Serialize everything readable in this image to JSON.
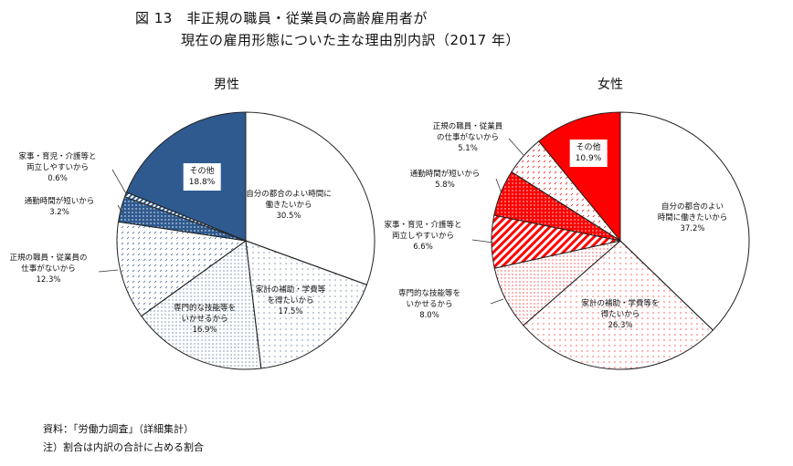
{
  "title_line1": "図 13　非正規の職員・従業員の高齢雇用者が",
  "title_line2": "現在の雇用形態についた主な理由別内訳（2017 年）",
  "notes": [
    "資料：「労働力調査」（詳細集計）",
    "注）割合は内訳の合計に占める割合"
  ],
  "colors": {
    "male": "#2f5a8f",
    "female": "#ff0000"
  },
  "chart_data": [
    {
      "type": "pie",
      "title": "男性",
      "direction": "clockwise from top",
      "slices": [
        {
          "label": [
            "自分の都合のよい時間に",
            "働きたいから"
          ],
          "value": 30.5,
          "value_label": "30.5%",
          "pattern": "none"
        },
        {
          "label": [
            "家計の補助・学費等",
            "を得たいから"
          ],
          "value": 17.5,
          "value_label": "17.5%",
          "pattern": "sparse-dots"
        },
        {
          "label": [
            "専門的な技能等を",
            "いかせるから"
          ],
          "value": 16.9,
          "value_label": "16.9%",
          "pattern": "dots"
        },
        {
          "label": [
            "正規の職員・従業員の",
            "仕事がないから"
          ],
          "value": 12.3,
          "value_label": "12.3%",
          "pattern": "dashes"
        },
        {
          "label": [
            "通勤時間が短いから"
          ],
          "value": 3.2,
          "value_label": "3.2%",
          "pattern": "dense-dots-on-color"
        },
        {
          "label": [
            "家事・育児・介護等と",
            "両立しやすいから"
          ],
          "value": 0.6,
          "value_label": "0.6%",
          "pattern": "stripes"
        },
        {
          "label": [
            "その他"
          ],
          "value": 18.8,
          "value_label": "18.8%",
          "pattern": "solid"
        }
      ]
    },
    {
      "type": "pie",
      "title": "女性",
      "direction": "clockwise from top",
      "slices": [
        {
          "label": [
            "自分の都合のよい",
            "時間に働きたいから"
          ],
          "value": 37.2,
          "value_label": "37.2%",
          "pattern": "none"
        },
        {
          "label": [
            "家計の補助・学費等を",
            "得たいから"
          ],
          "value": 26.3,
          "value_label": "26.3%",
          "pattern": "sparse-dots"
        },
        {
          "label": [
            "専門的な技能等を",
            "いかせるから"
          ],
          "value": 8.0,
          "value_label": "8.0%",
          "pattern": "dots"
        },
        {
          "label": [
            "家事・育児・介護等と",
            "両立しやすいから"
          ],
          "value": 6.6,
          "value_label": "6.6%",
          "pattern": "stripes"
        },
        {
          "label": [
            "通勤時間が短いから"
          ],
          "value": 5.8,
          "value_label": "5.8%",
          "pattern": "dense-dots-on-color"
        },
        {
          "label": [
            "正規の職員・従業員",
            "の仕事がないから"
          ],
          "value": 5.1,
          "value_label": "5.1%",
          "pattern": "dashes"
        },
        {
          "label": [
            "その他"
          ],
          "value": 10.9,
          "value_label": "10.9%",
          "pattern": "solid"
        }
      ]
    }
  ]
}
